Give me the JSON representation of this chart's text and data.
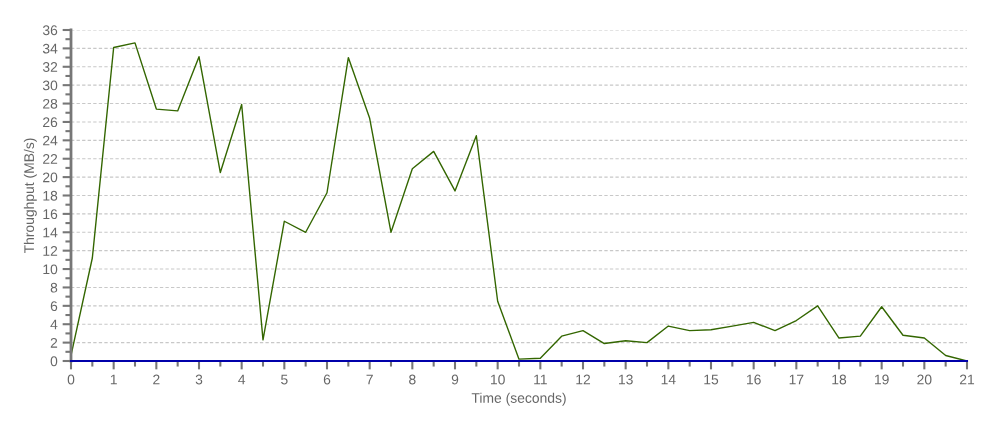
{
  "chart_data": {
    "type": "line",
    "xlabel": "Time (seconds)",
    "ylabel": "Throughput (MB/s)",
    "x": [
      0,
      0.5,
      1,
      1.5,
      2,
      2.5,
      3,
      3.5,
      4,
      4.5,
      5,
      5.5,
      6,
      6.5,
      7,
      7.5,
      8,
      8.5,
      9,
      9.5,
      10,
      10.5,
      11,
      11.5,
      12,
      12.5,
      13,
      13.5,
      14,
      14.5,
      15,
      15.5,
      16,
      16.5,
      17,
      17.5,
      18,
      18.5,
      19,
      19.5,
      20,
      20.5,
      21
    ],
    "series": [
      {
        "color": "#336600",
        "values": [
          0.6,
          11.2,
          34.1,
          34.6,
          27.4,
          27.2,
          33.1,
          20.5,
          27.9,
          2.3,
          15.2,
          14.0,
          18.3,
          33.0,
          26.4,
          14.0,
          20.9,
          22.8,
          18.5,
          24.5,
          6.5,
          0.2,
          0.3,
          2.7,
          3.3,
          1.9,
          2.2,
          2.0,
          3.8,
          3.3,
          3.4,
          3.8,
          4.2,
          3.3,
          4.4,
          6.0,
          2.5,
          2.7,
          5.9,
          2.8,
          2.5,
          0.6,
          0.0
        ]
      }
    ],
    "xlim": [
      0,
      21
    ],
    "xticks": [
      0,
      1,
      2,
      3,
      4,
      5,
      6,
      7,
      8,
      9,
      10,
      11,
      12,
      13,
      14,
      15,
      16,
      17,
      18,
      19,
      20,
      21
    ],
    "ylim": [
      0,
      36
    ],
    "yticks": [
      0,
      2,
      4,
      6,
      8,
      10,
      12,
      14,
      16,
      18,
      20,
      22,
      24,
      26,
      28,
      30,
      32,
      34,
      36
    ],
    "grid": "y",
    "legend": false,
    "marker": "none",
    "line_style": "solid"
  }
}
